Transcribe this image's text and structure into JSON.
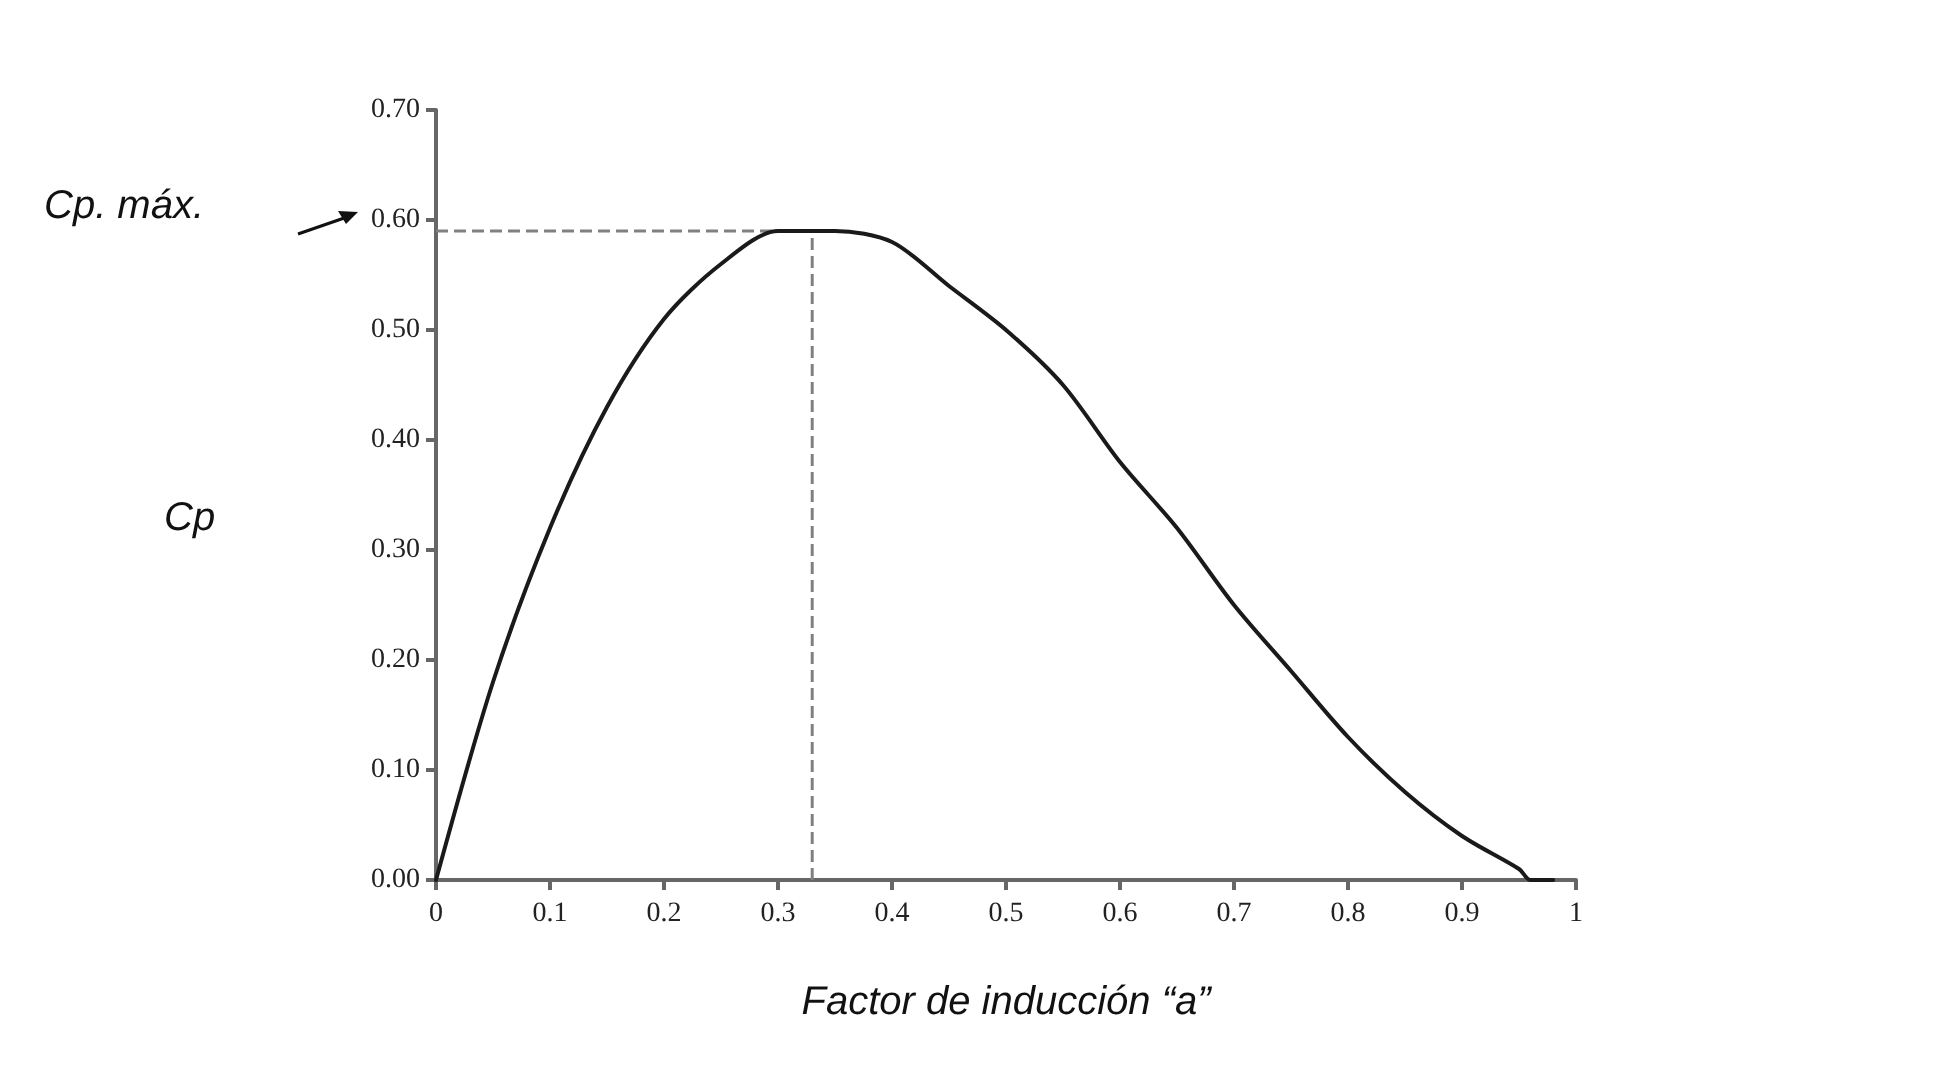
{
  "chart_data": {
    "type": "line",
    "xlabel": "Factor de inducción “a”",
    "ylabel": "Cp",
    "x": [
      0,
      0.05,
      0.1,
      0.15,
      0.2,
      0.25,
      0.3,
      0.333,
      0.35,
      0.4,
      0.45,
      0.5,
      0.55,
      0.6,
      0.65,
      0.7,
      0.75,
      0.8,
      0.85,
      0.9,
      0.95,
      0.96,
      0.98
    ],
    "series": [
      {
        "color": "#1a1a1a",
        "values": [
          0,
          0.18,
          0.32,
          0.43,
          0.51,
          0.56,
          0.59,
          0.59,
          0.59,
          0.58,
          0.54,
          0.5,
          0.45,
          0.38,
          0.32,
          0.25,
          0.19,
          0.13,
          0.08,
          0.04,
          0.01,
          0,
          0
        ]
      }
    ],
    "xlim": [
      0,
      1
    ],
    "xticks": [
      0,
      0.1,
      0.2,
      0.3,
      0.4,
      0.5,
      0.6,
      0.7,
      0.8,
      0.9,
      1
    ],
    "ylim": [
      0,
      0.7
    ],
    "yticks": [
      {
        "value": 0,
        "label": "0.00"
      },
      {
        "value": 0.1,
        "label": "0.10"
      },
      {
        "value": 0.2,
        "label": "0.20"
      },
      {
        "value": 0.3,
        "label": "0.30"
      },
      {
        "value": 0.4,
        "label": "0.40"
      },
      {
        "value": 0.5,
        "label": "0.50"
      },
      {
        "value": 0.6,
        "label": "0.60"
      },
      {
        "value": 0.7,
        "label": "0.70"
      }
    ],
    "ref_lines": [
      {
        "axis": "x",
        "value": 0.33,
        "color": "#808080",
        "line_style": "dashed"
      },
      {
        "axis": "y",
        "value": 0.59,
        "color": "#808080",
        "line_style": "dashed"
      }
    ],
    "annotations": [
      "Cp. máx."
    ],
    "grid": false,
    "marker": "none",
    "line_style": "solid"
  }
}
